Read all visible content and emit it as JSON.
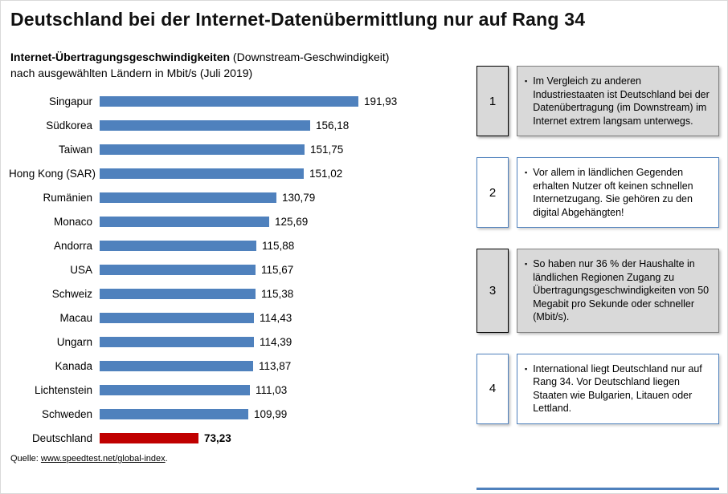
{
  "page": {
    "title": "Deutschland bei der Internet-Datenübermittlung nur auf Rang 34"
  },
  "chart": {
    "subtitle_bold": "Internet-Übertragungsgeschwindigkeiten",
    "subtitle_normal": " (Downstream-Geschwindigkeit)",
    "subtitle_line2": "nach ausgewählten Ländern in Mbit/s (Juli 2019)",
    "source_label": "Quelle: ",
    "source_link": "www.speedtest.net/global-index",
    "source_suffix": "."
  },
  "chart_data": {
    "type": "bar",
    "orientation": "horizontal",
    "title": "Internet-Übertragungsgeschwindigkeiten (Downstream-Geschwindigkeit) nach ausgewählten Ländern in Mbit/s (Juli 2019)",
    "categories": [
      "Singapur",
      "Südkorea",
      "Taiwan",
      "Hong Kong (SAR)",
      "Rumänien",
      "Monaco",
      "Andorra",
      "USA",
      "Schweiz",
      "Macau",
      "Ungarn",
      "Kanada",
      "Lichtenstein",
      "Schweden",
      "Deutschland"
    ],
    "values": [
      191.93,
      156.18,
      151.75,
      151.02,
      130.79,
      125.69,
      115.88,
      115.67,
      115.38,
      114.43,
      114.39,
      113.87,
      111.03,
      109.99,
      73.23
    ],
    "value_labels": [
      "191,93",
      "156,18",
      "151,75",
      "151,02",
      "130,79",
      "125,69",
      "115,88",
      "115,67",
      "115,38",
      "114,43",
      "114,39",
      "113,87",
      "111,03",
      "109,99",
      "73,23"
    ],
    "xlim": [
      0,
      200
    ],
    "grid": false,
    "legend": false,
    "bar_color": "#4f81bd",
    "highlight_color": "#c00000",
    "highlight_index": 14,
    "xlabel": "",
    "ylabel": ""
  },
  "annotations": [
    {
      "number": "1",
      "style": "gray",
      "text": "Im Vergleich zu anderen Industriestaaten ist Deutschland bei der Datenübertragung (im Downstream) im Internet extrem langsam unterwegs."
    },
    {
      "number": "2",
      "style": "blue",
      "text": "Vor allem in ländlichen Gegenden erhalten Nutzer oft keinen schnellen Internetzugang. Sie gehören zu den digital Abgehängten!"
    },
    {
      "number": "3",
      "style": "gray",
      "text": "So haben nur 36 % der Haushalte in ländlichen Regionen Zugang zu Übertragungsgeschwindigkeiten von 50 Megabit pro Sekunde oder schneller (Mbit/s)."
    },
    {
      "number": "4",
      "style": "blue",
      "text": "International liegt Deutschland nur auf Rang 34. Vor Deutschland liegen Staaten wie Bulgarien, Litauen oder Lettland."
    }
  ],
  "icons": {
    "bullet": "▪"
  },
  "colors": {
    "bar_blue": "#4f81bd",
    "highlight_red": "#c00000",
    "box_gray": "#d9d9d9",
    "box_border_blue": "#4f81bd"
  }
}
